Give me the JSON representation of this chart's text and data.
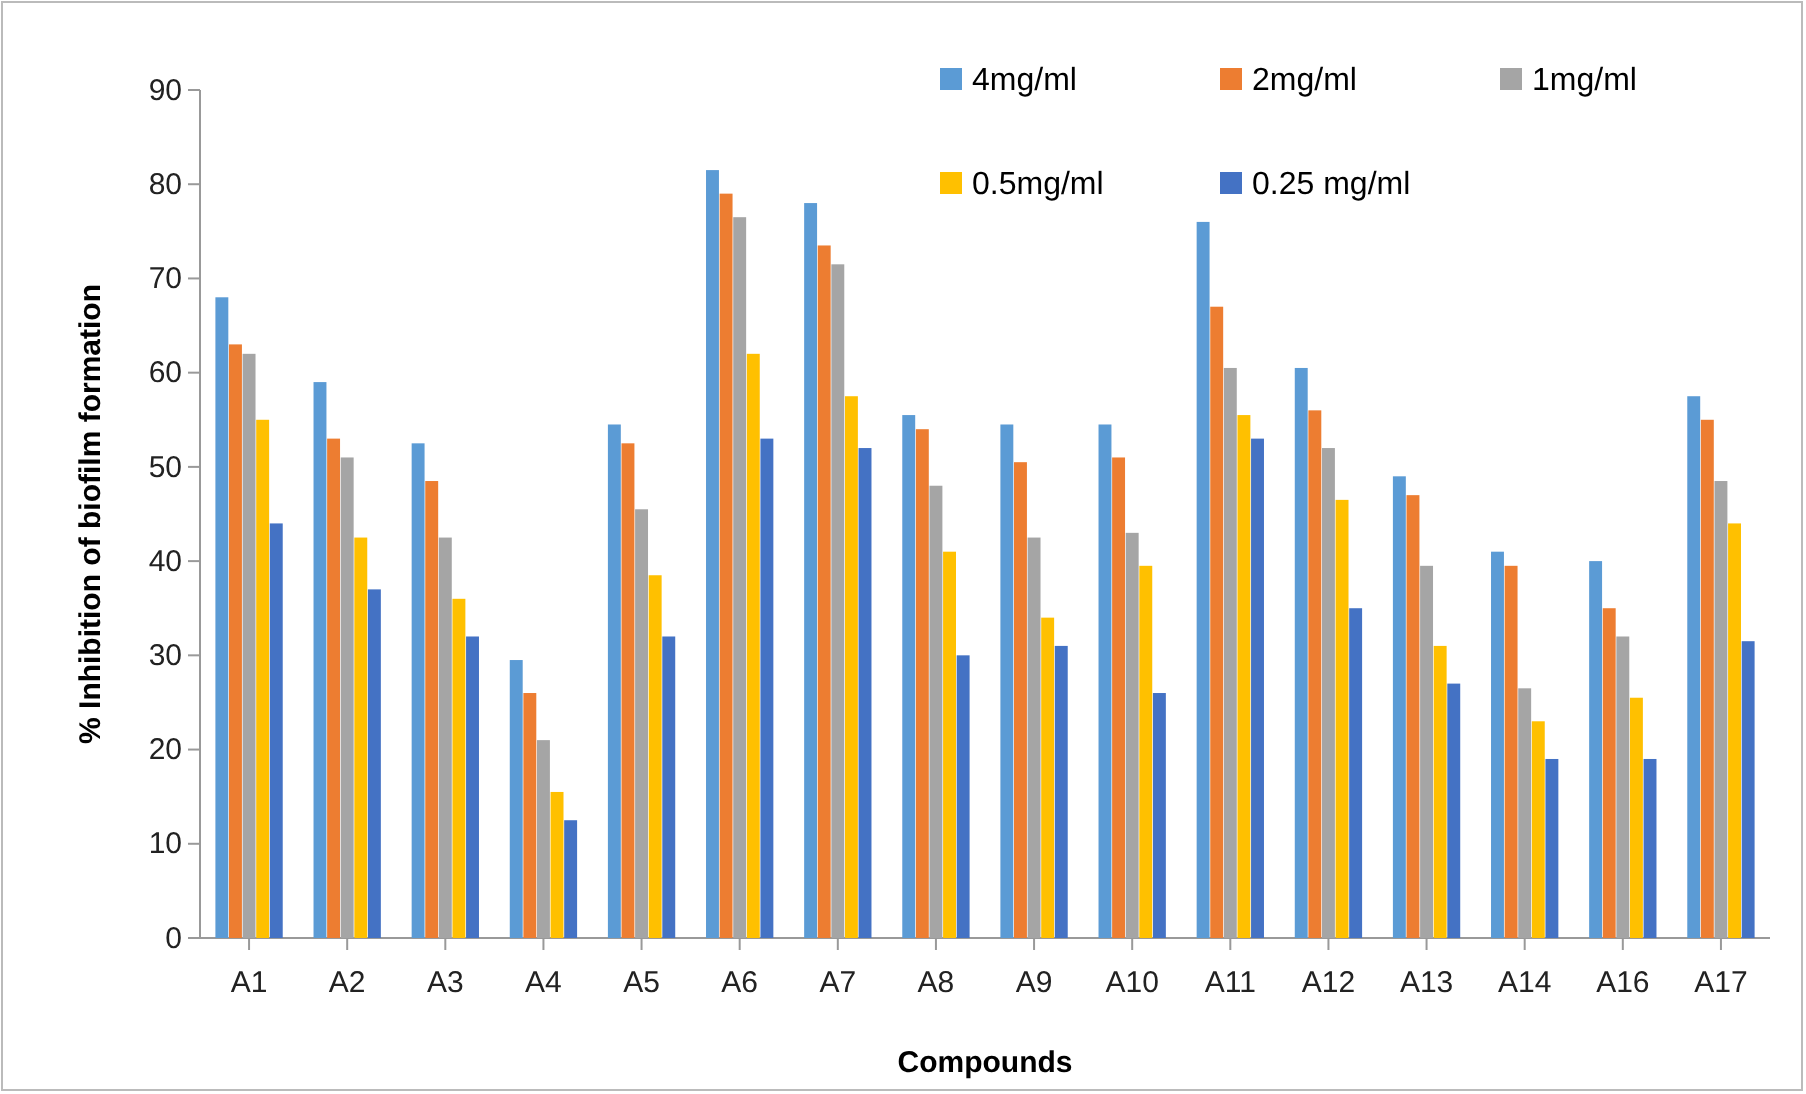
{
  "chart_data": {
    "type": "bar",
    "xlabel": "Compounds",
    "ylabel": "% Inhibition of biofilm formation",
    "categories": [
      "A1",
      "A2",
      "A3",
      "A4",
      "A5",
      "A6",
      "A7",
      "A8",
      "A9",
      "A10",
      "A11",
      "A12",
      "A13",
      "A14",
      "A16",
      "A17"
    ],
    "series": [
      {
        "name": "4mg/ml",
        "color": "#5b9bd5",
        "values": [
          68,
          59,
          52.5,
          29.5,
          54.5,
          81.5,
          78,
          55.5,
          54.5,
          54.5,
          76,
          60.5,
          49,
          41,
          40,
          57.5
        ]
      },
      {
        "name": "2mg/ml",
        "color": "#ed7d31",
        "values": [
          63,
          53,
          48.5,
          26,
          52.5,
          79,
          73.5,
          54,
          50.5,
          51,
          67,
          56,
          47,
          39.5,
          35,
          55
        ]
      },
      {
        "name": "1mg/ml",
        "color": "#a5a5a5",
        "values": [
          62,
          51,
          42.5,
          21,
          45.5,
          76.5,
          71.5,
          48,
          42.5,
          43,
          60.5,
          52,
          39.5,
          26.5,
          32,
          48.5
        ]
      },
      {
        "name": "0.5mg/ml",
        "color": "#ffc000",
        "values": [
          55,
          42.5,
          36,
          15.5,
          38.5,
          62,
          57.5,
          41,
          34,
          39.5,
          55.5,
          46.5,
          31,
          23,
          25.5,
          44
        ]
      },
      {
        "name": "0.25 mg/ml",
        "color": "#4472c4",
        "values": [
          44,
          37,
          32,
          12.5,
          32,
          53,
          52,
          30,
          31,
          26,
          53,
          35,
          27,
          19,
          19,
          31.5
        ]
      }
    ],
    "ylim": [
      0,
      90
    ],
    "yticks": [
      0,
      10,
      20,
      30,
      40,
      50,
      60,
      70,
      80,
      90
    ],
    "grid": false,
    "legend": "top right"
  }
}
